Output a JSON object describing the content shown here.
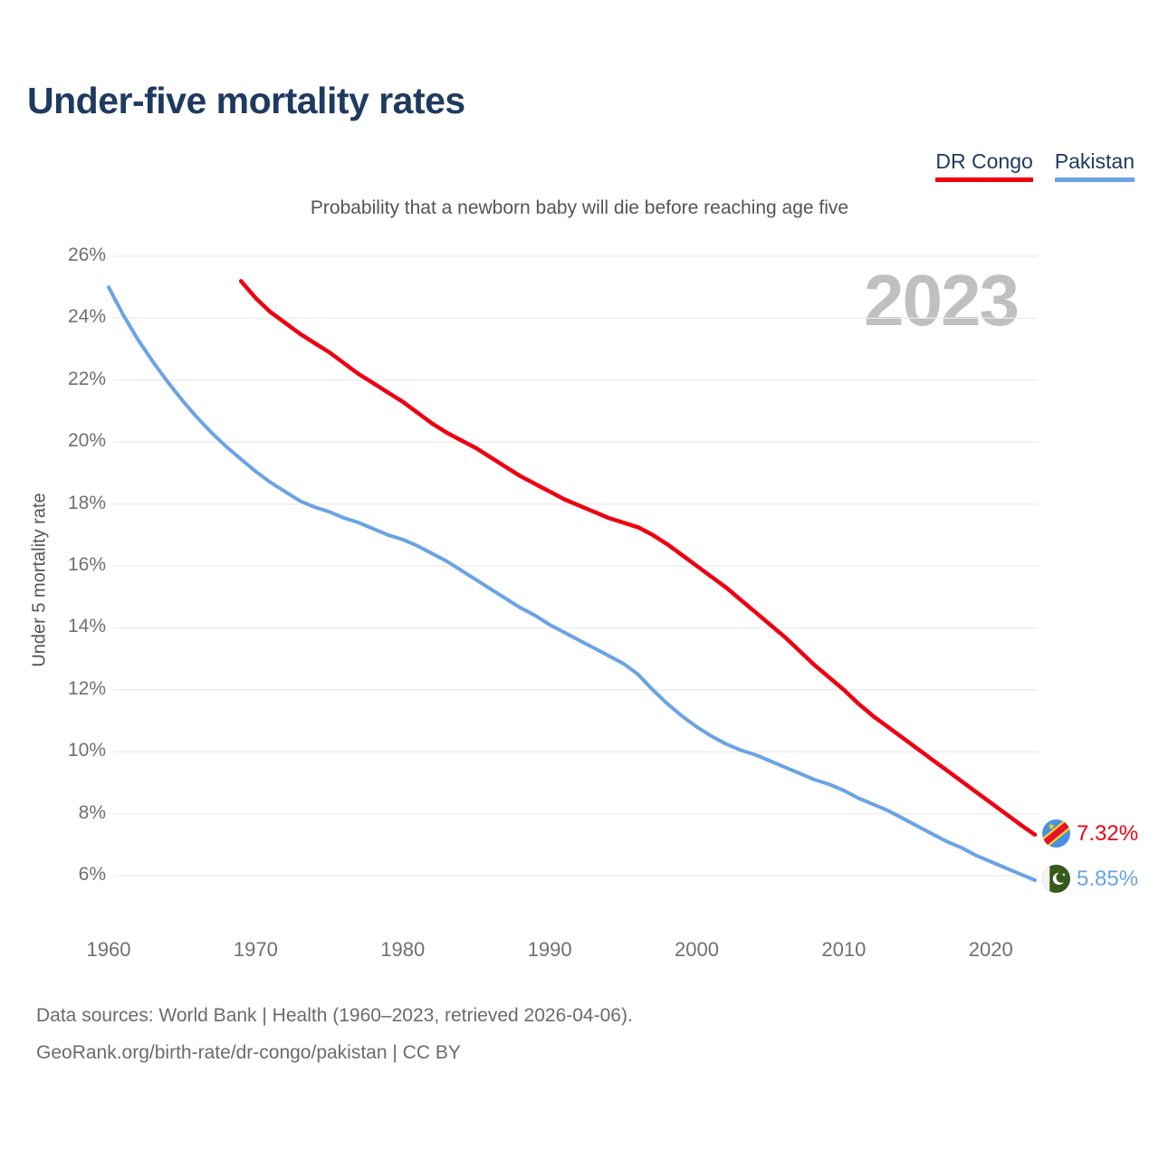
{
  "page": {
    "title": "Under-five mortality rates",
    "subtitle": "Probability that a newborn baby will die before reaching age five",
    "watermark_year": "2023",
    "footer_line1": "Data sources: World Bank | Health (1960–2023, retrieved 2026-04-06).",
    "footer_line2": "GeoRank.org/birth-rate/dr-congo/pakistan | CC BY"
  },
  "legend": {
    "items": [
      {
        "label": "DR Congo",
        "color": "#ee0011"
      },
      {
        "label": "Pakistan",
        "color": "#6ba3e5"
      }
    ]
  },
  "end_labels": {
    "items": [
      {
        "series": "DR Congo",
        "value": "7.32%",
        "flag": "dr-congo-flag",
        "color": "#ee0011"
      },
      {
        "series": "Pakistan",
        "value": "5.85%",
        "flag": "pakistan-flag",
        "color": "#6ba3e5"
      }
    ]
  },
  "chart_data": {
    "type": "line",
    "title": "Probability that a newborn baby will die before reaching age five",
    "xlabel": "",
    "ylabel": "Under 5 mortality rate",
    "xlim": [
      1960,
      2023
    ],
    "ylim_percent": [
      6,
      26
    ],
    "x_ticks": [
      1960,
      1970,
      1980,
      1990,
      2000,
      2010,
      2020
    ],
    "y_ticks_percent": [
      26,
      24,
      22,
      20,
      18,
      16,
      14,
      12,
      10,
      8,
      6
    ],
    "grid": true,
    "legend_position": "top-right",
    "watermark": "2023",
    "series": [
      {
        "name": "DR Congo",
        "color": "#ee0011",
        "end_label": "7.32%",
        "points": [
          [
            1969,
            25.2
          ],
          [
            1970,
            24.65
          ],
          [
            1971,
            24.2
          ],
          [
            1972,
            23.85
          ],
          [
            1973,
            23.5
          ],
          [
            1974,
            23.2
          ],
          [
            1975,
            22.9
          ],
          [
            1976,
            22.55
          ],
          [
            1977,
            22.2
          ],
          [
            1978,
            21.9
          ],
          [
            1979,
            21.6
          ],
          [
            1980,
            21.3
          ],
          [
            1981,
            20.95
          ],
          [
            1982,
            20.6
          ],
          [
            1983,
            20.3
          ],
          [
            1984,
            20.05
          ],
          [
            1985,
            19.8
          ],
          [
            1986,
            19.5
          ],
          [
            1987,
            19.2
          ],
          [
            1988,
            18.9
          ],
          [
            1989,
            18.65
          ],
          [
            1990,
            18.4
          ],
          [
            1991,
            18.15
          ],
          [
            1992,
            17.95
          ],
          [
            1993,
            17.75
          ],
          [
            1994,
            17.55
          ],
          [
            1995,
            17.4
          ],
          [
            1996,
            17.25
          ],
          [
            1997,
            17.0
          ],
          [
            1998,
            16.7
          ],
          [
            1999,
            16.35
          ],
          [
            2000,
            16.0
          ],
          [
            2001,
            15.65
          ],
          [
            2002,
            15.3
          ],
          [
            2003,
            14.9
          ],
          [
            2004,
            14.5
          ],
          [
            2005,
            14.1
          ],
          [
            2006,
            13.7
          ],
          [
            2007,
            13.25
          ],
          [
            2008,
            12.8
          ],
          [
            2009,
            12.4
          ],
          [
            2010,
            12.0
          ],
          [
            2011,
            11.55
          ],
          [
            2012,
            11.15
          ],
          [
            2013,
            10.8
          ],
          [
            2014,
            10.45
          ],
          [
            2015,
            10.1
          ],
          [
            2016,
            9.75
          ],
          [
            2017,
            9.4
          ],
          [
            2018,
            9.05
          ],
          [
            2019,
            8.7
          ],
          [
            2020,
            8.35
          ],
          [
            2021,
            8.0
          ],
          [
            2022,
            7.65
          ],
          [
            2023,
            7.32
          ]
        ]
      },
      {
        "name": "Pakistan",
        "color": "#6ba3e5",
        "end_label": "5.85%",
        "points": [
          [
            1960,
            25.0
          ],
          [
            1961,
            24.1
          ],
          [
            1962,
            23.3
          ],
          [
            1963,
            22.6
          ],
          [
            1964,
            21.95
          ],
          [
            1965,
            21.35
          ],
          [
            1966,
            20.8
          ],
          [
            1967,
            20.3
          ],
          [
            1968,
            19.85
          ],
          [
            1969,
            19.45
          ],
          [
            1970,
            19.05
          ],
          [
            1971,
            18.7
          ],
          [
            1972,
            18.4
          ],
          [
            1973,
            18.1
          ],
          [
            1974,
            17.9
          ],
          [
            1975,
            17.75
          ],
          [
            1976,
            17.55
          ],
          [
            1977,
            17.4
          ],
          [
            1978,
            17.2
          ],
          [
            1979,
            17.0
          ],
          [
            1980,
            16.85
          ],
          [
            1981,
            16.65
          ],
          [
            1982,
            16.4
          ],
          [
            1983,
            16.15
          ],
          [
            1984,
            15.85
          ],
          [
            1985,
            15.55
          ],
          [
            1986,
            15.25
          ],
          [
            1987,
            14.95
          ],
          [
            1988,
            14.65
          ],
          [
            1989,
            14.4
          ],
          [
            1990,
            14.1
          ],
          [
            1991,
            13.85
          ],
          [
            1992,
            13.6
          ],
          [
            1993,
            13.35
          ],
          [
            1994,
            13.1
          ],
          [
            1995,
            12.85
          ],
          [
            1996,
            12.5
          ],
          [
            1997,
            12.0
          ],
          [
            1998,
            11.55
          ],
          [
            1999,
            11.15
          ],
          [
            2000,
            10.8
          ],
          [
            2001,
            10.5
          ],
          [
            2002,
            10.25
          ],
          [
            2003,
            10.05
          ],
          [
            2004,
            9.9
          ],
          [
            2005,
            9.7
          ],
          [
            2006,
            9.5
          ],
          [
            2007,
            9.3
          ],
          [
            2008,
            9.1
          ],
          [
            2009,
            8.95
          ],
          [
            2010,
            8.75
          ],
          [
            2011,
            8.5
          ],
          [
            2012,
            8.3
          ],
          [
            2013,
            8.1
          ],
          [
            2014,
            7.85
          ],
          [
            2015,
            7.6
          ],
          [
            2016,
            7.35
          ],
          [
            2017,
            7.1
          ],
          [
            2018,
            6.9
          ],
          [
            2019,
            6.65
          ],
          [
            2020,
            6.45
          ],
          [
            2021,
            6.25
          ],
          [
            2022,
            6.05
          ],
          [
            2023,
            5.85
          ]
        ]
      }
    ]
  }
}
